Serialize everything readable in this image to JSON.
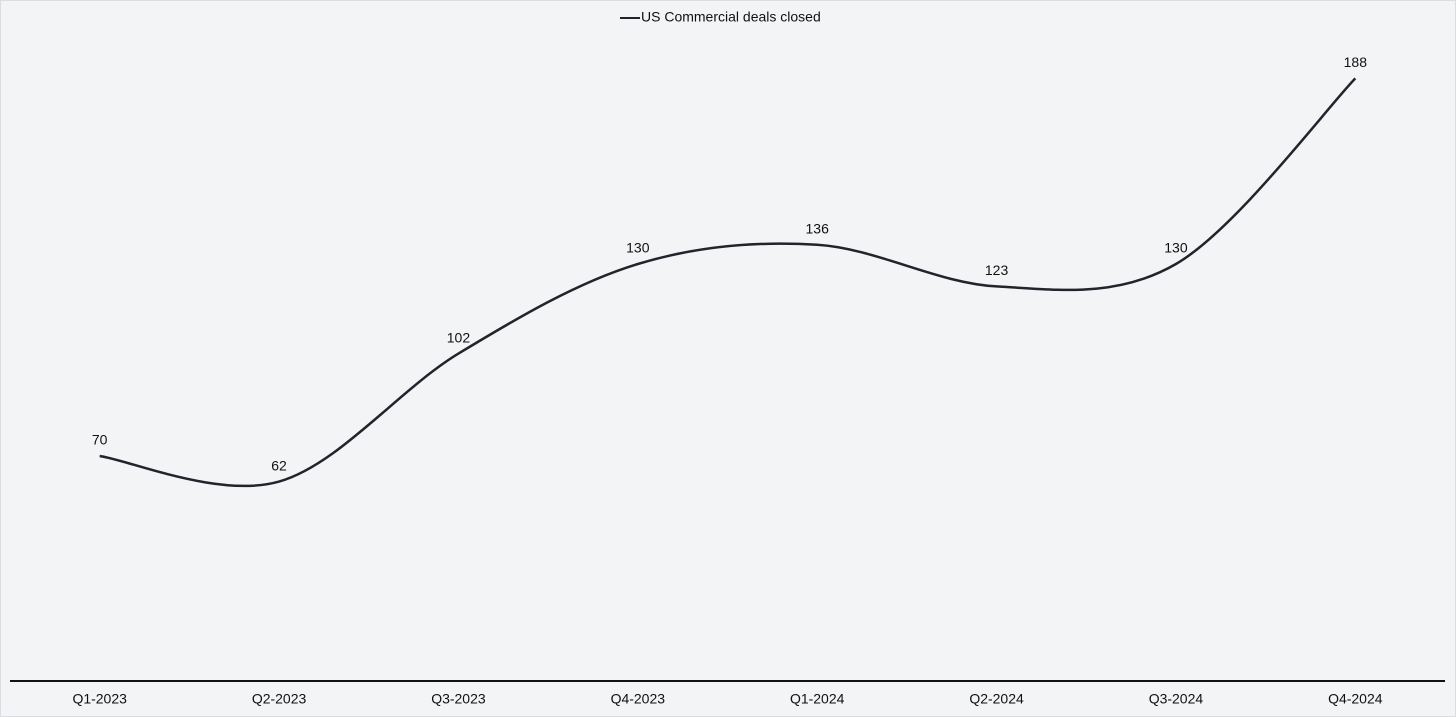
{
  "chart_data": {
    "type": "line",
    "categories": [
      "Q1-2023",
      "Q2-2023",
      "Q3-2023",
      "Q4-2023",
      "Q1-2024",
      "Q2-2024",
      "Q3-2024",
      "Q4-2024"
    ],
    "series": [
      {
        "name": "US Commercial deals closed",
        "color": "#23232b",
        "values": [
          70,
          62,
          102,
          130,
          136,
          123,
          130,
          188
        ]
      }
    ],
    "ylim": [
      0,
      200
    ],
    "smooth": true,
    "legend": "top"
  }
}
